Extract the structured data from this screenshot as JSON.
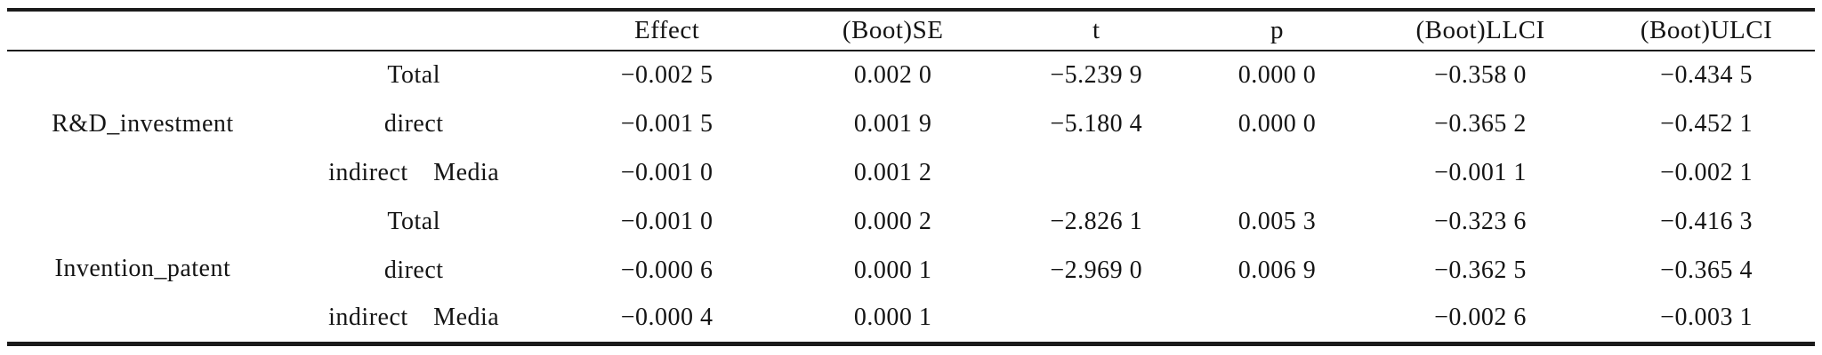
{
  "table": {
    "header": {
      "effect": "Effect",
      "se": "(Boot)SE",
      "t": "t",
      "p": "p",
      "llci": "(Boot)LLCI",
      "ulci": "(Boot)ULCI"
    },
    "groups": [
      {
        "label": "R&D_investment",
        "rows": [
          {
            "type": "Total",
            "effect": "−0.002 5",
            "se": "0.002 0",
            "t": "−5.239 9",
            "p": "0.000 0",
            "llci": "−0.358 0",
            "ulci": "−0.434 5"
          },
          {
            "type": "direct",
            "effect": "−0.001 5",
            "se": "0.001 9",
            "t": "−5.180 4",
            "p": "0.000 0",
            "llci": "−0.365 2",
            "ulci": "−0.452 1"
          },
          {
            "type": "indirect Media",
            "effect": "−0.001 0",
            "se": "0.001 2",
            "t": "",
            "p": "",
            "llci": "−0.001 1",
            "ulci": "−0.002 1"
          }
        ]
      },
      {
        "label": "Invention_patent",
        "rows": [
          {
            "type": "Total",
            "effect": "−0.001 0",
            "se": "0.000 2",
            "t": "−2.826 1",
            "p": "0.005 3",
            "llci": "−0.323 6",
            "ulci": "−0.416 3"
          },
          {
            "type": "direct",
            "effect": "−0.000 6",
            "se": "0.000 1",
            "t": "−2.969 0",
            "p": "0.006 9",
            "llci": "−0.362 5",
            "ulci": "−0.365 4"
          },
          {
            "type": "indirect Media",
            "effect": "−0.000 4",
            "se": "0.000 1",
            "t": "",
            "p": "",
            "llci": "−0.002 6",
            "ulci": "−0.003 1"
          }
        ]
      }
    ]
  }
}
